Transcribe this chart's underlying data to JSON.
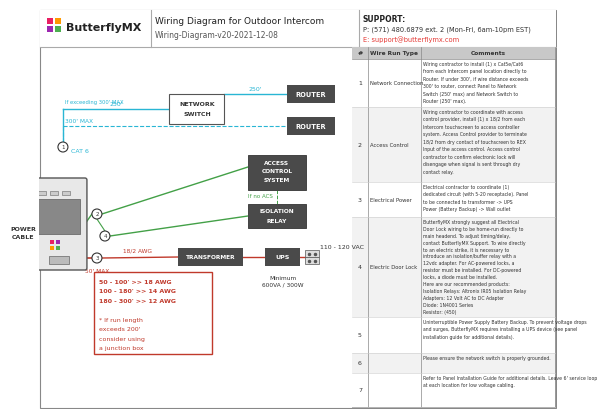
{
  "title": "Wiring Diagram for Outdoor Intercom",
  "subtitle": "Wiring-Diagram-v20-2021-12-08",
  "support_title": "SUPPORT:",
  "support_phone": "P: (571) 480.6879 ext. 2 (Mon-Fri, 6am-10pm EST)",
  "support_email": "E: support@butterflymx.com",
  "bg_color": "#ffffff",
  "cyan": "#29b6d4",
  "green": "#43a047",
  "red_dark": "#c0392b",
  "dark_box": "#4a4a4a",
  "wire_run_rows": [
    {
      "num": "1",
      "type": "Network Connection",
      "comment": "Wiring contractor to install (1) x Cat5e/Cat6\nfrom each Intercom panel location directly to\nRouter. If under 300', if wire distance exceeds\n300' to router, connect Panel to Network\nSwitch (250' max) and Network Switch to\nRouter (250' max)."
    },
    {
      "num": "2",
      "type": "Access Control",
      "comment": "Wiring contractor to coordinate with access\ncontrol provider, install (1) x 18/2 from each\nIntercom touchscreen to access controller\nsystem. Access Control provider to terminate\n18/2 from dry contact of touchscreen to REX\nInput of the access control. Access control\ncontractor to confirm electronic lock will\ndisengage when signal is sent through dry\ncontact relay."
    },
    {
      "num": "3",
      "type": "Electrical Power",
      "comment": "Electrical contractor to coordinate (1)\ndedicated circuit (with 5-20 receptacle). Panel\nto be connected to transformer -> UPS\nPower (Battery Backup) -> Wall outlet"
    },
    {
      "num": "4",
      "type": "Electric Door Lock",
      "comment": "ButterflyMX strongly suggest all Electrical\nDoor Lock wiring to be home-run directly to\nmain headend. To adjust timing/delay,\ncontact ButterflyMX Support. To wire directly\nto an electric strike, it is necessary to\nintroduce an isolation/buffer relay with a\n12vdc adapter. For AC-powered locks, a\nresistor must be installed. For DC-powered\nlocks, a diode must be installed.\nHere are our recommended products:\nIsolation Relays: Altronix IR05 Isolation Relay\nAdapters: 12 Volt AC to DC Adapter\nDiode: 1N4001 Series\nResistor: (450)"
    },
    {
      "num": "5",
      "type": "",
      "comment": "Uninterruptible Power Supply Battery Backup. To prevent voltage drops\nand surges, ButterflyMX requires installing a UPS device (see panel\ninstallation guide for additional details)."
    },
    {
      "num": "6",
      "type": "",
      "comment": "Please ensure the network switch is properly grounded."
    },
    {
      "num": "7",
      "type": "",
      "comment": "Refer to Panel Installation Guide for additional details. Leave 6' service loop\nat each location for low voltage cabling."
    }
  ]
}
